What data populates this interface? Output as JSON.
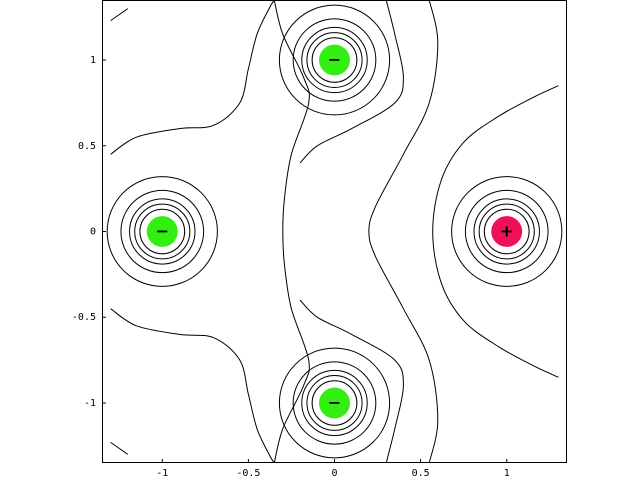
{
  "chart_data": {
    "type": "contour",
    "title": "",
    "xlabel": "",
    "ylabel": "",
    "xlim": [
      -1.35,
      1.35
    ],
    "ylim": [
      -1.35,
      1.35
    ],
    "x_ticks": [
      {
        "value": -1,
        "label": "-1"
      },
      {
        "value": -0.5,
        "label": "-0.5"
      },
      {
        "value": 0,
        "label": "0"
      },
      {
        "value": 0.5,
        "label": "0.5"
      },
      {
        "value": 1,
        "label": "1"
      }
    ],
    "y_ticks": [
      {
        "value": 1,
        "label": "1"
      },
      {
        "value": 0.5,
        "label": "0.5"
      },
      {
        "value": 0,
        "label": "0"
      },
      {
        "value": -0.5,
        "label": "-0.5"
      },
      {
        "value": -1,
        "label": "-1"
      }
    ],
    "grid": false,
    "charges": [
      {
        "x": 0,
        "y": 1,
        "sign": "−",
        "color": "#33ee11",
        "radius": 0.09
      },
      {
        "x": -1,
        "y": 0,
        "sign": "−",
        "color": "#33ee11",
        "radius": 0.09
      },
      {
        "x": 0,
        "y": -1,
        "sign": "−",
        "color": "#33ee11",
        "radius": 0.09
      },
      {
        "x": 1,
        "y": 0,
        "sign": "+",
        "color": "#ee1155",
        "radius": 0.09
      }
    ],
    "rings": [
      {
        "cx": 0,
        "cy": 1,
        "radii": [
          0.13,
          0.16,
          0.19,
          0.24,
          0.32
        ]
      },
      {
        "cx": -1,
        "cy": 0,
        "radii": [
          0.13,
          0.16,
          0.19,
          0.24,
          0.32
        ]
      },
      {
        "cx": 0,
        "cy": -1,
        "radii": [
          0.13,
          0.16,
          0.19,
          0.24,
          0.32
        ]
      },
      {
        "cx": 1,
        "cy": 0,
        "radii": [
          0.13,
          0.16,
          0.19,
          0.24,
          0.32
        ]
      }
    ],
    "contour_lines": [
      {
        "name": "upper-left-curve",
        "points": [
          [
            -1.3,
            0.45
          ],
          [
            -1.15,
            0.55
          ],
          [
            -0.9,
            0.6
          ],
          [
            -0.7,
            0.62
          ],
          [
            -0.55,
            0.75
          ],
          [
            -0.5,
            0.95
          ],
          [
            -0.45,
            1.15
          ],
          [
            -0.38,
            1.3
          ],
          [
            -0.35,
            1.35
          ]
        ]
      },
      {
        "name": "lower-left-curve",
        "points": [
          [
            -1.3,
            -0.45
          ],
          [
            -1.15,
            -0.55
          ],
          [
            -0.9,
            -0.6
          ],
          [
            -0.7,
            -0.62
          ],
          [
            -0.55,
            -0.75
          ],
          [
            -0.5,
            -0.95
          ],
          [
            -0.45,
            -1.15
          ],
          [
            -0.38,
            -1.3
          ],
          [
            -0.35,
            -1.35
          ]
        ]
      },
      {
        "name": "left-center-curve",
        "points": [
          [
            -0.35,
            1.35
          ],
          [
            -0.3,
            1.15
          ],
          [
            -0.18,
            0.9
          ],
          [
            -0.15,
            0.75
          ],
          [
            -0.25,
            0.45
          ],
          [
            -0.29,
            0.2
          ],
          [
            -0.3,
            0
          ],
          [
            -0.29,
            -0.2
          ],
          [
            -0.25,
            -0.45
          ],
          [
            -0.15,
            -0.75
          ],
          [
            -0.18,
            -0.9
          ],
          [
            -0.3,
            -1.15
          ],
          [
            -0.35,
            -1.35
          ]
        ]
      },
      {
        "name": "top-right-curve-a",
        "points": [
          [
            0.3,
            1.35
          ],
          [
            0.35,
            1.15
          ],
          [
            0.4,
            0.9
          ],
          [
            0.35,
            0.75
          ],
          [
            0.1,
            0.6
          ],
          [
            -0.1,
            0.5
          ],
          [
            -0.2,
            0.4
          ]
        ]
      },
      {
        "name": "bottom-right-curve-a",
        "points": [
          [
            0.3,
            -1.35
          ],
          [
            0.35,
            -1.15
          ],
          [
            0.4,
            -0.9
          ],
          [
            0.35,
            -0.75
          ],
          [
            0.1,
            -0.6
          ],
          [
            -0.1,
            -0.5
          ],
          [
            -0.2,
            -0.4
          ]
        ]
      },
      {
        "name": "middle-curve",
        "points": [
          [
            0.55,
            1.35
          ],
          [
            0.6,
            1.1
          ],
          [
            0.55,
            0.75
          ],
          [
            0.4,
            0.45
          ],
          [
            0.24,
            0.15
          ],
          [
            0.2,
            0
          ],
          [
            0.24,
            -0.15
          ],
          [
            0.4,
            -0.45
          ],
          [
            0.55,
            -0.75
          ],
          [
            0.6,
            -1.1
          ],
          [
            0.55,
            -1.35
          ]
        ]
      },
      {
        "name": "right-outer-curve",
        "points": [
          [
            1.3,
            0.85
          ],
          [
            1.15,
            0.78
          ],
          [
            0.95,
            0.67
          ],
          [
            0.75,
            0.52
          ],
          [
            0.62,
            0.3
          ],
          [
            0.57,
            0
          ],
          [
            0.62,
            -0.3
          ],
          [
            0.75,
            -0.52
          ],
          [
            0.95,
            -0.67
          ],
          [
            1.15,
            -0.78
          ],
          [
            1.3,
            -0.85
          ]
        ]
      },
      {
        "name": "top-left-corner-stub",
        "points": [
          [
            -1.3,
            1.23
          ],
          [
            -1.2,
            1.3
          ]
        ]
      },
      {
        "name": "bottom-left-corner-stub",
        "points": [
          [
            -1.3,
            -1.23
          ],
          [
            -1.2,
            -1.3
          ]
        ]
      }
    ]
  },
  "colors": {
    "frame": "#000000",
    "line": "#000000",
    "background": "#ffffff"
  }
}
